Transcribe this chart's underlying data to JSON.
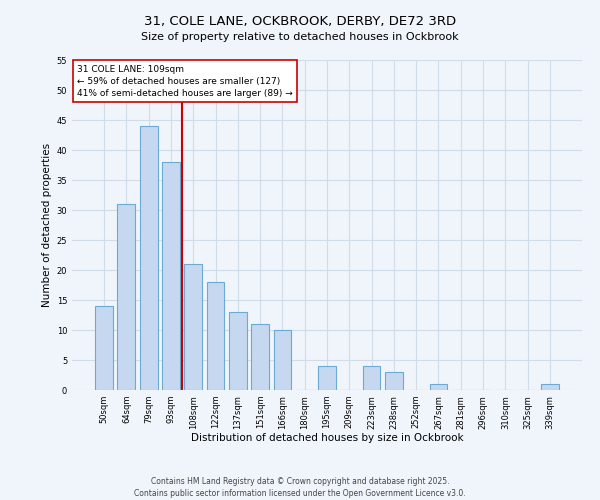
{
  "title": "31, COLE LANE, OCKBROOK, DERBY, DE72 3RD",
  "subtitle": "Size of property relative to detached houses in Ockbrook",
  "xlabel": "Distribution of detached houses by size in Ockbrook",
  "ylabel": "Number of detached properties",
  "categories": [
    "50sqm",
    "64sqm",
    "79sqm",
    "93sqm",
    "108sqm",
    "122sqm",
    "137sqm",
    "151sqm",
    "166sqm",
    "180sqm",
    "195sqm",
    "209sqm",
    "223sqm",
    "238sqm",
    "252sqm",
    "267sqm",
    "281sqm",
    "296sqm",
    "310sqm",
    "325sqm",
    "339sqm"
  ],
  "values": [
    14,
    31,
    44,
    38,
    21,
    18,
    13,
    11,
    10,
    0,
    4,
    0,
    4,
    3,
    0,
    1,
    0,
    0,
    0,
    0,
    1
  ],
  "bar_color": "#c5d8f0",
  "bar_edge_color": "#6aaad4",
  "vline_x_index": 4,
  "vline_color": "#cc0000",
  "annotation_line1": "31 COLE LANE: 109sqm",
  "annotation_line2": "← 59% of detached houses are smaller (127)",
  "annotation_line3": "41% of semi-detached houses are larger (89) →",
  "annotation_box_color": "#ffffff",
  "annotation_box_edge_color": "#cc0000",
  "ylim": [
    0,
    55
  ],
  "yticks": [
    0,
    5,
    10,
    15,
    20,
    25,
    30,
    35,
    40,
    45,
    50,
    55
  ],
  "grid_color": "#d0dce8",
  "background_color": "#f0f5fb",
  "footer_text": "Contains HM Land Registry data © Crown copyright and database right 2025.\nContains public sector information licensed under the Open Government Licence v3.0.",
  "title_fontsize": 9.5,
  "subtitle_fontsize": 8,
  "xlabel_fontsize": 7.5,
  "ylabel_fontsize": 7.5,
  "tick_fontsize": 6,
  "annotation_fontsize": 6.5,
  "footer_fontsize": 5.5
}
